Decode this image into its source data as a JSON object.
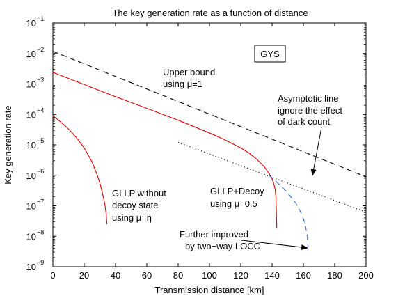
{
  "chart_data": {
    "type": "line",
    "title": "The key generation rate as a function of distance",
    "xlabel": "Transmission distance [km]",
    "ylabel": "Key generation rate",
    "xlim": [
      0,
      200
    ],
    "ylim_exp": [
      -9,
      -1
    ],
    "yscale": "log",
    "grid": false,
    "x_ticks": [
      "0",
      "20",
      "40",
      "60",
      "80",
      "100",
      "120",
      "140",
      "160",
      "180",
      "200"
    ],
    "y_ticks": [
      {
        "base": "10",
        "exp": "−1"
      },
      {
        "base": "10",
        "exp": "−2"
      },
      {
        "base": "10",
        "exp": "−3"
      },
      {
        "base": "10",
        "exp": "−4"
      },
      {
        "base": "10",
        "exp": "−5"
      },
      {
        "base": "10",
        "exp": "−6"
      },
      {
        "base": "10",
        "exp": "−7"
      },
      {
        "base": "10",
        "exp": "−8"
      },
      {
        "base": "10",
        "exp": "−9"
      }
    ],
    "series": [
      {
        "key": "upper_bound",
        "style": "dashed",
        "color": "#000000",
        "x": [
          0,
          200
        ],
        "log10_y": [
          -1.93,
          -6.05
        ]
      },
      {
        "key": "asymptotic",
        "style": "dotted",
        "color": "#000000",
        "x": [
          80,
          200
        ],
        "log10_y": [
          -4.92,
          -7.21
        ]
      },
      {
        "key": "gllp_decoy",
        "style": "solid",
        "color": "#e00000",
        "x": [
          0,
          20,
          40,
          60,
          80,
          100,
          110,
          120,
          125,
          130,
          135,
          138,
          140,
          141,
          142,
          142.5,
          143
        ],
        "log10_y": [
          -2.62,
          -3.02,
          -3.42,
          -3.8,
          -4.19,
          -4.61,
          -4.84,
          -5.1,
          -5.26,
          -5.46,
          -5.72,
          -5.93,
          -6.12,
          -6.26,
          -6.48,
          -6.75,
          -7.75
        ]
      },
      {
        "key": "gllp_no_decoy",
        "style": "solid",
        "color": "#e00000",
        "x": [
          0,
          5,
          10,
          15,
          20,
          25,
          28,
          30,
          31.5,
          33,
          34,
          34.5
        ],
        "log10_y": [
          -4.04,
          -4.25,
          -4.48,
          -4.76,
          -5.1,
          -5.56,
          -5.95,
          -6.25,
          -6.55,
          -6.9,
          -7.25,
          -7.6
        ]
      },
      {
        "key": "two_way",
        "style": "dashed",
        "color": "#2a6fd6",
        "x": [
          138,
          145,
          150,
          155,
          158,
          160,
          161.5,
          162.5,
          163
        ],
        "log10_y": [
          -5.99,
          -6.32,
          -6.58,
          -6.9,
          -7.18,
          -7.42,
          -7.72,
          -8.0,
          -8.35
        ]
      }
    ],
    "legend_box": "GYS",
    "annotations": {
      "upper_bound": [
        "Upper bound",
        "using μ=1"
      ],
      "asymptotic": [
        "Asymptotic line",
        "ignore the effect",
        "of dark count"
      ],
      "gllp_no_decoy": [
        "GLLP without",
        "decoy state",
        "using μ=η"
      ],
      "gllp_decoy": [
        "GLLP+Decoy",
        "using μ=0.5"
      ],
      "two_way": [
        "Further improved",
        "by two−way LOCC"
      ]
    }
  }
}
